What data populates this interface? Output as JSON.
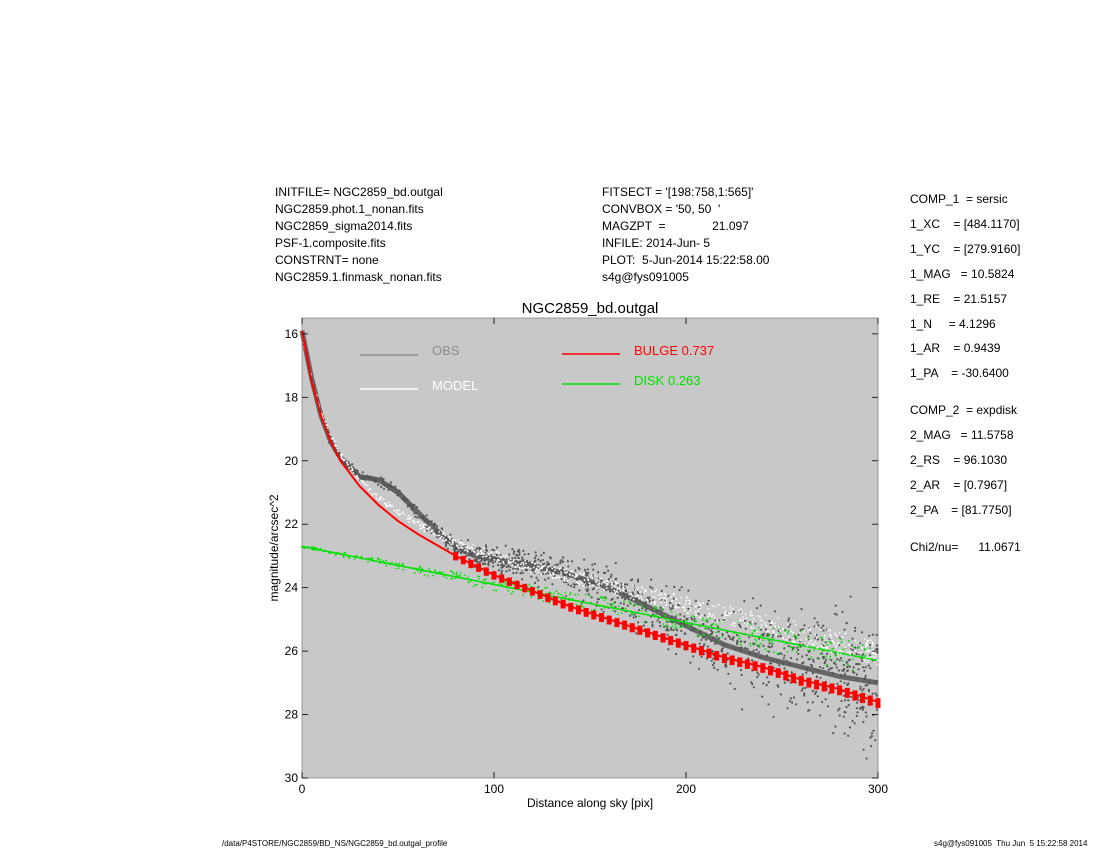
{
  "header": {
    "left_lines": [
      "INITFILE= NGC2859_bd.outgal",
      "NGC2859.phot.1_nonan.fits",
      "NGC2859_sigma2014.fits",
      "PSF-1.composite.fits",
      "CONSTRNT= none",
      "NGC2859.1.finmask_nonan.fits"
    ],
    "right_lines": [
      "FITSECT = '[198:758,1:565]'",
      "CONVBOX = '50, 50  '",
      "MAGZPT  =              21.097",
      "INFILE: 2014-Jun- 5",
      "PLOT:  5-Jun-2014 15:22:58.00",
      "s4g@fys091005"
    ]
  },
  "params": {
    "comp1": [
      "COMP_1  = sersic",
      "1_XC    = [484.1170]",
      "1_YC    = [279.9160]",
      "1_MAG   = 10.5824",
      "1_RE    = 21.5157",
      "1_N     = 4.1296",
      "1_AR    = 0.9439",
      "1_PA    = -30.6400"
    ],
    "comp2": [
      "COMP_2  = expdisk",
      "2_MAG   = 11.5758",
      "2_RS    = 96.1030",
      "2_AR    = [0.7967]",
      "2_PA    = [81.7750]"
    ],
    "chi2": "Chi2/nu=      11.0671"
  },
  "footer": {
    "left": "/data/P4STORE/NGC2859/BD_NS/NGC2859_bd.outgal_profile",
    "right": "s4g@fys091005  Thu Jun  5 15:22:58 2014"
  },
  "colors": {
    "plot_bg": "#c8c8c8",
    "obs": "#555555",
    "obs_legend": "#8c8c8c",
    "model": "#ffffff",
    "bulge": "#ff0000",
    "disk": "#00e000"
  },
  "chart_data": {
    "type": "scatter",
    "title": "NGC2859_bd.outgal",
    "xlabel": "Distance along sky [pix]",
    "ylabel": "magnitude/arcsec^2",
    "xlim": [
      0,
      300
    ],
    "ylim": [
      30,
      15.5
    ],
    "y_inverted": true,
    "xticks": [
      0,
      100,
      200,
      300
    ],
    "yticks": [
      16,
      18,
      20,
      22,
      24,
      26,
      28,
      30
    ],
    "grid": false,
    "legend": [
      {
        "label": "OBS",
        "value": "",
        "color": "#8c8c8c"
      },
      {
        "label": "MODEL",
        "value": "",
        "color": "#ffffff"
      },
      {
        "label": "BULGE",
        "value": "0.737",
        "color": "#ff0000"
      },
      {
        "label": "DISK",
        "value": "0.263",
        "color": "#00e000"
      }
    ],
    "series": [
      {
        "name": "OBS",
        "x": [
          0,
          5,
          10,
          15,
          20,
          30,
          40,
          50,
          60,
          70,
          80,
          90,
          100,
          120,
          140,
          160,
          180,
          200,
          220,
          240,
          260,
          280,
          300
        ],
        "y": [
          15.9,
          17.4,
          18.6,
          19.4,
          19.9,
          20.5,
          20.6,
          21.0,
          21.6,
          22.2,
          22.7,
          23.0,
          23.1,
          23.3,
          23.6,
          24.0,
          24.6,
          25.2,
          25.8,
          26.2,
          26.5,
          26.8,
          27.0
        ]
      },
      {
        "name": "MODEL",
        "x": [
          0,
          5,
          10,
          15,
          20,
          30,
          40,
          50,
          60,
          80,
          100,
          120,
          140,
          160,
          180,
          200,
          220,
          240,
          260,
          280,
          300
        ],
        "y": [
          16.0,
          17.4,
          18.5,
          19.2,
          19.8,
          20.6,
          21.2,
          21.6,
          22.0,
          22.6,
          23.0,
          23.35,
          23.65,
          23.95,
          24.25,
          24.55,
          24.85,
          25.15,
          25.45,
          25.75,
          26.05
        ]
      },
      {
        "name": "BULGE",
        "x": [
          0,
          5,
          10,
          15,
          20,
          30,
          40,
          50,
          60,
          80,
          100,
          120,
          140,
          160,
          180,
          200,
          220,
          240,
          260,
          280,
          300
        ],
        "y": [
          15.9,
          17.5,
          18.6,
          19.4,
          20.0,
          20.8,
          21.4,
          21.9,
          22.3,
          23.0,
          23.6,
          24.1,
          24.6,
          25.0,
          25.4,
          25.8,
          26.2,
          26.5,
          26.9,
          27.2,
          27.6
        ]
      },
      {
        "name": "DISK",
        "x": [
          0,
          300
        ],
        "y": [
          22.7,
          26.3
        ]
      }
    ]
  }
}
